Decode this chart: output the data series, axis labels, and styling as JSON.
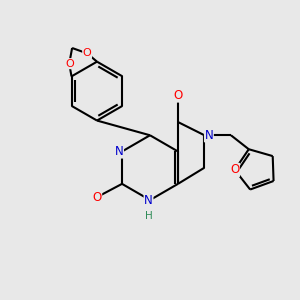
{
  "bg_color": "#e8e8e8",
  "bond_color": "#000000",
  "bond_width": 1.5,
  "N_color": "#0000cc",
  "O_color": "#ff0000",
  "H_color": "#2e8b57",
  "fig_width": 3.0,
  "fig_height": 3.0,
  "dpi": 100,
  "xlim": [
    0,
    10
  ],
  "ylim": [
    0,
    10
  ]
}
